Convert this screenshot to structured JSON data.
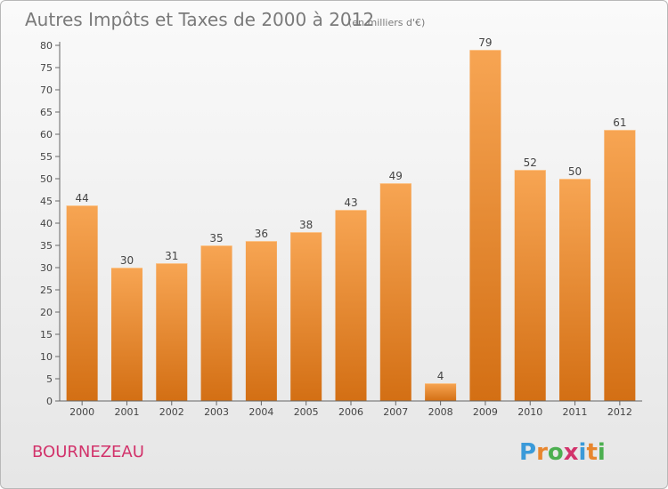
{
  "chart_data": {
    "type": "bar",
    "title": "Autres Impôts et Taxes de 2000 à 2012",
    "subtitle": "(en milliers d'€)",
    "categories": [
      "2000",
      "2001",
      "2002",
      "2003",
      "2004",
      "2005",
      "2006",
      "2007",
      "2008",
      "2009",
      "2010",
      "2011",
      "2012"
    ],
    "values": [
      44,
      30,
      31,
      35,
      36,
      38,
      43,
      49,
      4,
      79,
      52,
      50,
      61
    ],
    "ylim": [
      0,
      80
    ],
    "yticks": [
      0,
      5,
      10,
      15,
      20,
      25,
      30,
      35,
      40,
      45,
      50,
      55,
      60,
      65,
      70,
      75,
      80
    ],
    "grid": false,
    "bar_color": "#e8862e"
  },
  "footer": {
    "commune": "BOURNEZEAU",
    "logo_text": "Proxiti"
  },
  "colors": {
    "title": "#7a7a7a",
    "commune": "#d2336b",
    "logo": [
      "#3a9ad9",
      "#e8862e",
      "#4caf50",
      "#d2336b",
      "#3a9ad9",
      "#e8862e",
      "#4caf50"
    ]
  }
}
